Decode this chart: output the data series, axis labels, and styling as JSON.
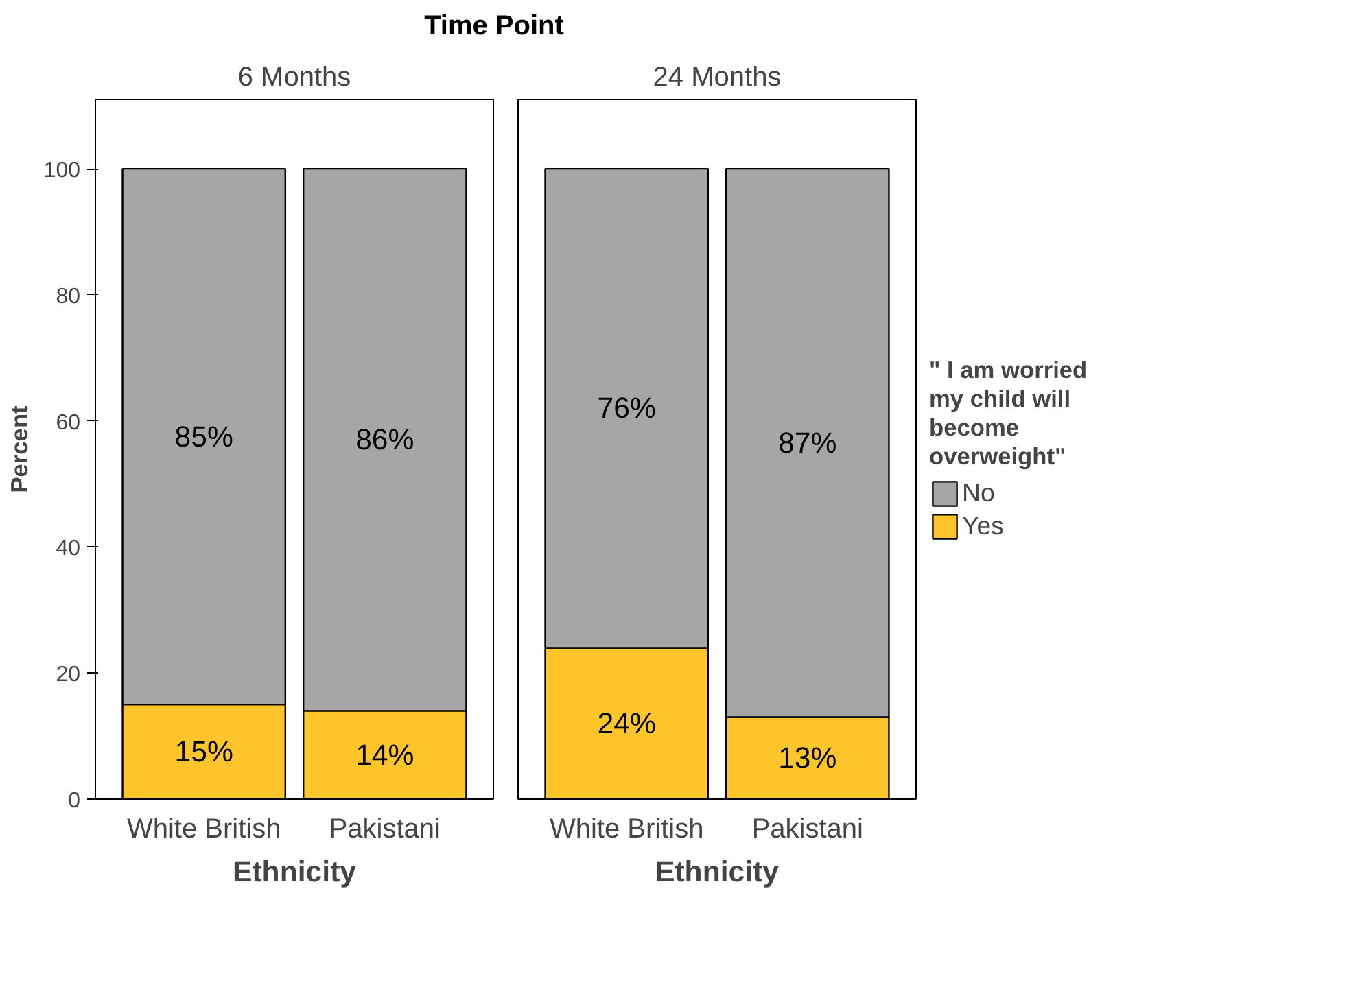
{
  "chart_data": [
    {
      "type": "bar",
      "stacked": true,
      "annotations": [
        "Time Point"
      ],
      "subtitle": "6 Months",
      "xlabel": "Ethnicity",
      "ylabel": "Percent",
      "categories": [
        "White British",
        "Pakistani"
      ],
      "ylim": [
        0,
        111
      ],
      "yticks": [
        0,
        20,
        40,
        60,
        80,
        100
      ],
      "grid": false,
      "legend": false,
      "series": [
        {
          "color": "#fdc52a",
          "values": [
            15,
            14
          ],
          "value_labels": [
            "15%",
            "14%"
          ]
        },
        {
          "color": "#a6a6a6",
          "values": [
            85,
            86
          ],
          "value_labels": [
            "85%",
            "86%"
          ]
        }
      ]
    },
    {
      "type": "bar",
      "stacked": true,
      "subtitle": "24 Months",
      "xlabel": "Ethnicity",
      "categories": [
        "White British",
        "Pakistani"
      ],
      "ylim": [
        0,
        111
      ],
      "yticks": [
        0,
        20,
        40,
        60,
        80,
        100
      ],
      "tick_labels": "x",
      "grid": false,
      "legend": "right",
      "legend_title": "\" I am worried my child will become overweight\"",
      "series": [
        {
          "name": "Yes",
          "color": "#fdc52a",
          "values": [
            24,
            13
          ],
          "value_labels": [
            "24%",
            "13%"
          ]
        },
        {
          "name": "No",
          "color": "#a6a6a6",
          "values": [
            76,
            87
          ],
          "value_labels": [
            "76%",
            "87%"
          ]
        }
      ]
    }
  ]
}
